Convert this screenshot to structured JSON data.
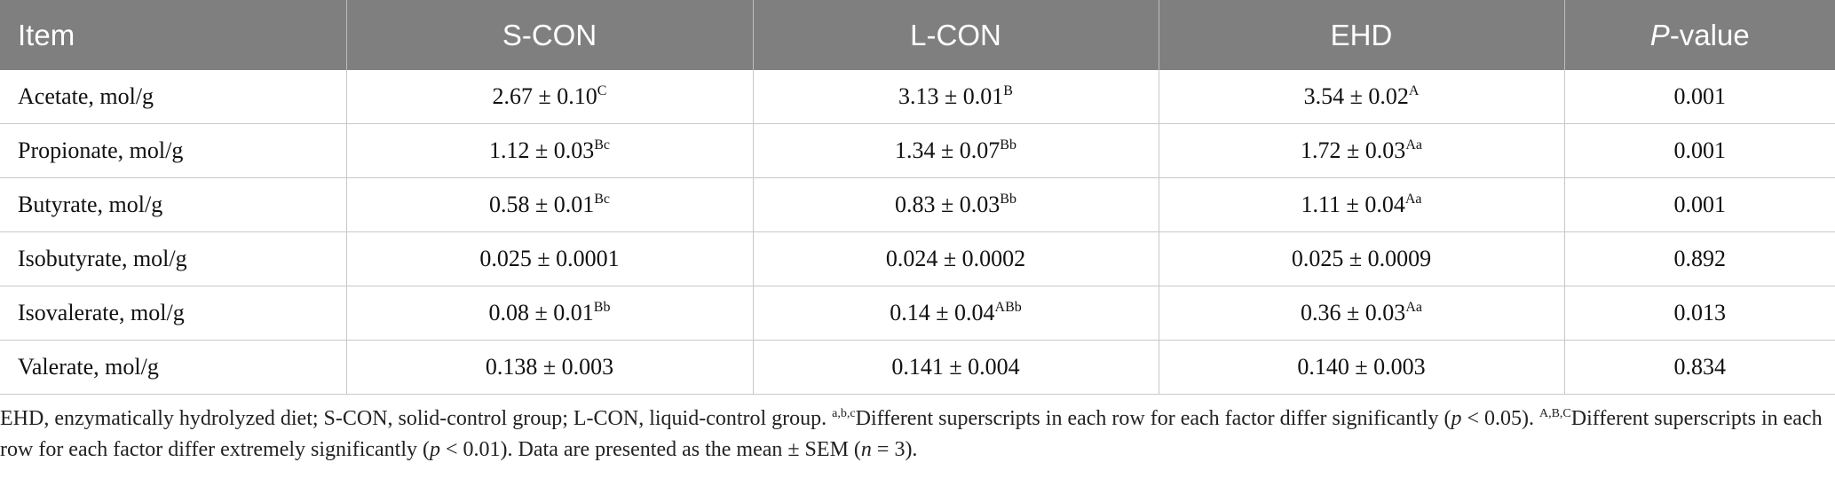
{
  "table": {
    "header": [
      [
        {
          "text": "Item"
        }
      ],
      [
        {
          "text": "S-CON"
        }
      ],
      [
        {
          "text": "L-CON"
        }
      ],
      [
        {
          "text": "EHD"
        }
      ],
      [
        {
          "text": "P",
          "italic": true
        },
        {
          "text": "-value"
        }
      ]
    ],
    "rows": [
      [
        {
          "text": "Acetate, mol/g"
        },
        {
          "text": "2.67 ± 0.10",
          "sup": "C"
        },
        {
          "text": "3.13 ± 0.01",
          "sup": "B"
        },
        {
          "text": "3.54 ± 0.02",
          "sup": "A"
        },
        {
          "text": "0.001"
        }
      ],
      [
        {
          "text": "Propionate, mol/g"
        },
        {
          "text": "1.12 ± 0.03",
          "sup": "Bc"
        },
        {
          "text": "1.34 ± 0.07",
          "sup": "Bb"
        },
        {
          "text": "1.72 ± 0.03",
          "sup": "Aa"
        },
        {
          "text": "0.001"
        }
      ],
      [
        {
          "text": "Butyrate, mol/g"
        },
        {
          "text": "0.58 ± 0.01",
          "sup": "Bc"
        },
        {
          "text": "0.83 ± 0.03",
          "sup": "Bb"
        },
        {
          "text": "1.11 ± 0.04",
          "sup": "Aa"
        },
        {
          "text": "0.001"
        }
      ],
      [
        {
          "text": "Isobutyrate, mol/g"
        },
        {
          "text": "0.025 ± 0.0001"
        },
        {
          "text": "0.024 ± 0.0002"
        },
        {
          "text": "0.025 ± 0.0009"
        },
        {
          "text": "0.892"
        }
      ],
      [
        {
          "text": "Isovalerate, mol/g"
        },
        {
          "text": "0.08 ± 0.01",
          "sup": "Bb"
        },
        {
          "text": "0.14 ± 0.04",
          "sup": "ABb"
        },
        {
          "text": "0.36 ± 0.03",
          "sup": "Aa"
        },
        {
          "text": "0.013"
        }
      ],
      [
        {
          "text": "Valerate, mol/g"
        },
        {
          "text": "0.138 ± 0.003"
        },
        {
          "text": "0.141 ± 0.004"
        },
        {
          "text": "0.140 ± 0.003"
        },
        {
          "text": "0.834"
        }
      ]
    ],
    "footnote": [
      {
        "text": "EHD, enzymatically hydrolyzed diet; S-CON, solid-control group; L-CON, liquid-control group. "
      },
      {
        "text": "a,b,c",
        "sup": true
      },
      {
        "text": "Different superscripts in each row for each factor differ significantly ("
      },
      {
        "text": "p",
        "italic": true
      },
      {
        "text": " < 0.05). "
      },
      {
        "text": "A,B,C",
        "sup": true
      },
      {
        "text": "Different superscripts in each row for each factor differ extremely significantly ("
      },
      {
        "text": "p",
        "italic": true
      },
      {
        "text": " < 0.01). Data are presented as the mean ± SEM ("
      },
      {
        "text": "n",
        "italic": true
      },
      {
        "text": " = 3)."
      }
    ]
  }
}
